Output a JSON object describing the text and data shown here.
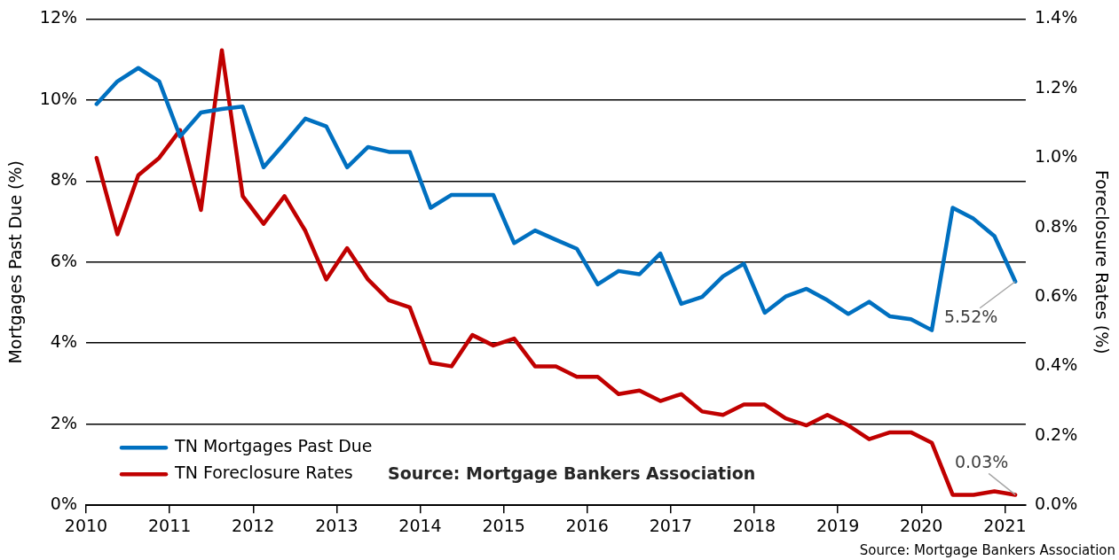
{
  "chart_data": {
    "type": "line",
    "ylabel": "Mortgages Past Due (%)",
    "y2label": "Foreclosure Rates (%)",
    "x": [
      2010.125,
      2010.375,
      2010.625,
      2010.875,
      2011.125,
      2011.375,
      2011.625,
      2011.875,
      2012.125,
      2012.375,
      2012.625,
      2012.875,
      2013.125,
      2013.375,
      2013.625,
      2013.875,
      2014.125,
      2014.375,
      2014.625,
      2014.875,
      2015.125,
      2015.375,
      2015.625,
      2015.875,
      2016.125,
      2016.375,
      2016.625,
      2016.875,
      2017.125,
      2017.375,
      2017.625,
      2017.875,
      2018.125,
      2018.375,
      2018.625,
      2018.875,
      2019.125,
      2019.375,
      2019.625,
      2019.875,
      2020.125,
      2020.375,
      2020.625,
      2020.875,
      2021.125
    ],
    "series": [
      {
        "name": "TN Mortgages Past Due",
        "color": "#0070c0",
        "values": [
          9.9,
          10.46,
          10.79,
          10.46,
          9.1,
          9.69,
          9.78,
          9.84,
          8.34,
          8.93,
          9.54,
          9.35,
          8.34,
          8.84,
          8.72,
          8.72,
          7.34,
          7.66,
          7.66,
          7.66,
          6.47,
          6.78,
          6.55,
          6.33,
          5.45,
          5.78,
          5.7,
          6.21,
          4.97,
          5.14,
          5.65,
          5.96,
          4.75,
          5.15,
          5.34,
          5.06,
          4.72,
          5.02,
          4.66,
          4.59,
          4.32,
          7.34,
          7.07,
          6.64,
          5.52
        ]
      },
      {
        "name": "TN Foreclosure Rates",
        "color": "#c00000",
        "axis": "y2",
        "values": [
          1.0,
          0.78,
          0.95,
          1.0,
          1.08,
          0.85,
          1.31,
          0.89,
          0.81,
          0.89,
          0.79,
          0.65,
          0.74,
          0.65,
          0.59,
          0.57,
          0.41,
          0.4,
          0.49,
          0.46,
          0.48,
          0.4,
          0.4,
          0.37,
          0.37,
          0.32,
          0.33,
          0.3,
          0.32,
          0.27,
          0.26,
          0.29,
          0.29,
          0.25,
          0.23,
          0.26,
          0.23,
          0.19,
          0.21,
          0.21,
          0.18,
          0.03,
          0.03,
          0.04,
          0.03
        ]
      }
    ],
    "xlim": [
      2010,
      2021.25
    ],
    "xticks": [
      2010,
      2011,
      2012,
      2013,
      2014,
      2015,
      2016,
      2017,
      2018,
      2019,
      2020,
      2021
    ],
    "ylim": [
      0,
      12
    ],
    "yticks": [
      {
        "value": 0,
        "label": "0%"
      },
      {
        "value": 2,
        "label": "2%"
      },
      {
        "value": 4,
        "label": "4%"
      },
      {
        "value": 6,
        "label": "6%"
      },
      {
        "value": 8,
        "label": "8%"
      },
      {
        "value": 10,
        "label": "10%"
      },
      {
        "value": 12,
        "label": "12%"
      }
    ],
    "y2lim": [
      0,
      1.4
    ],
    "y2ticks": [
      {
        "value": 0,
        "label": "0.0%"
      },
      {
        "value": 0.2,
        "label": "0.2%"
      },
      {
        "value": 0.4,
        "label": "0.4%"
      },
      {
        "value": 0.6,
        "label": "0.6%"
      },
      {
        "value": 0.8,
        "label": "0.8%"
      },
      {
        "value": 1.0,
        "label": "1.0%"
      },
      {
        "value": 1.2,
        "label": "1.2%"
      },
      {
        "value": 1.4,
        "label": "1.4%"
      }
    ],
    "annotations": [
      {
        "text": "5.52%",
        "x": 2021.125,
        "y": 5.52
      },
      "0.03%",
      "Source: Mortgage Bankers Association",
      "Source: Mortgage Bankers Association"
    ],
    "grid": "y",
    "legend": "bottom left",
    "marker": "none",
    "line_style": "solid"
  }
}
